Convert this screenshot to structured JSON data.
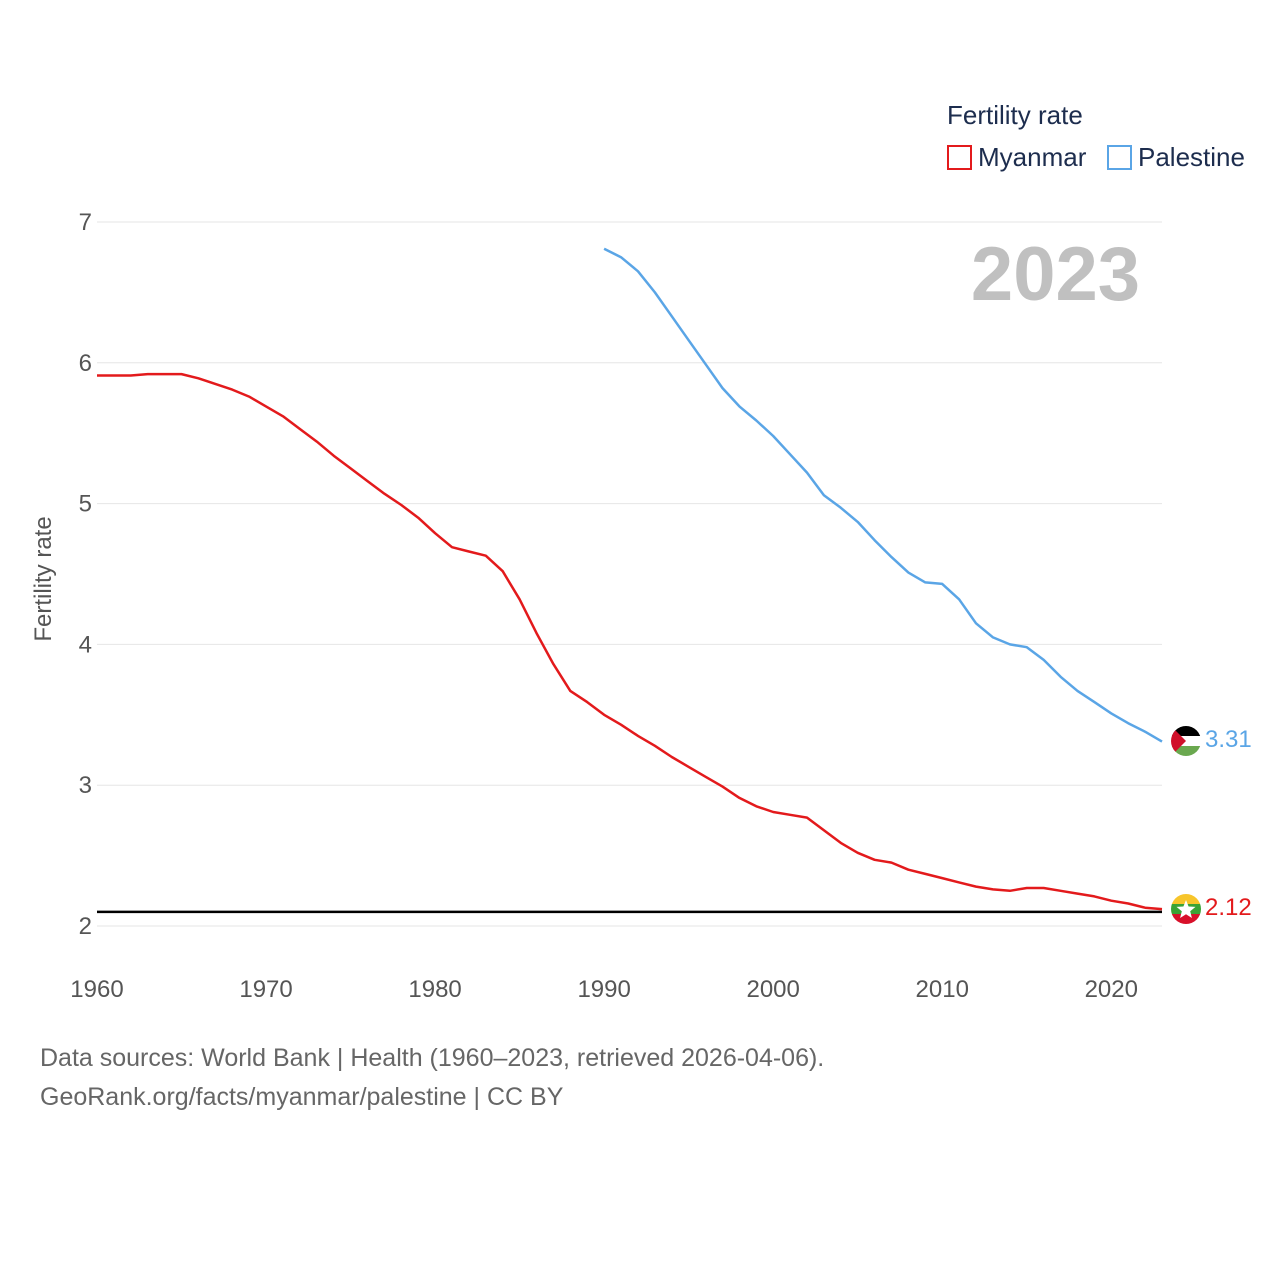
{
  "chart_data": {
    "type": "line",
    "title": "",
    "ylabel": "Fertility rate",
    "xlabel": "",
    "xlim": [
      1960,
      2023
    ],
    "ylim": [
      2,
      7
    ],
    "x_ticks": [
      1960,
      1970,
      1980,
      1990,
      2000,
      2010,
      2020
    ],
    "y_ticks": [
      2,
      3,
      4,
      5,
      6,
      7
    ],
    "legend": {
      "title": "Fertility rate",
      "position": "top-right"
    },
    "year_label": "2023",
    "reference_line": 2.1,
    "series": [
      {
        "name": "Myanmar",
        "color": "#e31a1c",
        "end_label": "2.12",
        "flag": "myanmar-flag",
        "x": [
          1960,
          1961,
          1962,
          1963,
          1964,
          1965,
          1966,
          1967,
          1968,
          1969,
          1970,
          1971,
          1972,
          1973,
          1974,
          1975,
          1976,
          1977,
          1978,
          1979,
          1980,
          1981,
          1982,
          1983,
          1984,
          1985,
          1986,
          1987,
          1988,
          1989,
          1990,
          1991,
          1992,
          1993,
          1994,
          1995,
          1996,
          1997,
          1998,
          1999,
          2000,
          2001,
          2002,
          2003,
          2004,
          2005,
          2006,
          2007,
          2008,
          2009,
          2010,
          2011,
          2012,
          2013,
          2014,
          2015,
          2016,
          2017,
          2018,
          2019,
          2020,
          2021,
          2022,
          2023
        ],
        "values": [
          5.91,
          5.91,
          5.91,
          5.92,
          5.92,
          5.92,
          5.89,
          5.85,
          5.81,
          5.76,
          5.69,
          5.62,
          5.53,
          5.44,
          5.34,
          5.25,
          5.16,
          5.07,
          4.99,
          4.9,
          4.79,
          4.69,
          4.66,
          4.63,
          4.52,
          4.32,
          4.08,
          3.86,
          3.67,
          3.59,
          3.5,
          3.43,
          3.35,
          3.28,
          3.2,
          3.13,
          3.06,
          2.99,
          2.91,
          2.85,
          2.81,
          2.79,
          2.77,
          2.68,
          2.59,
          2.52,
          2.47,
          2.45,
          2.4,
          2.37,
          2.34,
          2.31,
          2.28,
          2.26,
          2.25,
          2.27,
          2.27,
          2.25,
          2.23,
          2.21,
          2.18,
          2.16,
          2.13,
          2.12
        ]
      },
      {
        "name": "Palestine",
        "color": "#5aa5e6",
        "end_label": "3.31",
        "flag": "palestine-flag",
        "x": [
          1990,
          1991,
          1992,
          1993,
          1994,
          1995,
          1996,
          1997,
          1998,
          1999,
          2000,
          2001,
          2002,
          2003,
          2004,
          2005,
          2006,
          2007,
          2008,
          2009,
          2010,
          2011,
          2012,
          2013,
          2014,
          2015,
          2016,
          2017,
          2018,
          2019,
          2020,
          2021,
          2022,
          2023
        ],
        "values": [
          6.81,
          6.75,
          6.65,
          6.5,
          6.33,
          6.16,
          5.99,
          5.82,
          5.69,
          5.59,
          5.48,
          5.35,
          5.22,
          5.06,
          4.97,
          4.87,
          4.74,
          4.62,
          4.51,
          4.44,
          4.43,
          4.32,
          4.15,
          4.05,
          4.0,
          3.98,
          3.89,
          3.77,
          3.67,
          3.59,
          3.51,
          3.44,
          3.38,
          3.31
        ]
      }
    ]
  },
  "footer": {
    "source_line": "Data sources: World Bank | Health (1960–2023, retrieved 2026-04-06).",
    "url_line": "GeoRank.org/facts/myanmar/palestine | CC BY"
  }
}
